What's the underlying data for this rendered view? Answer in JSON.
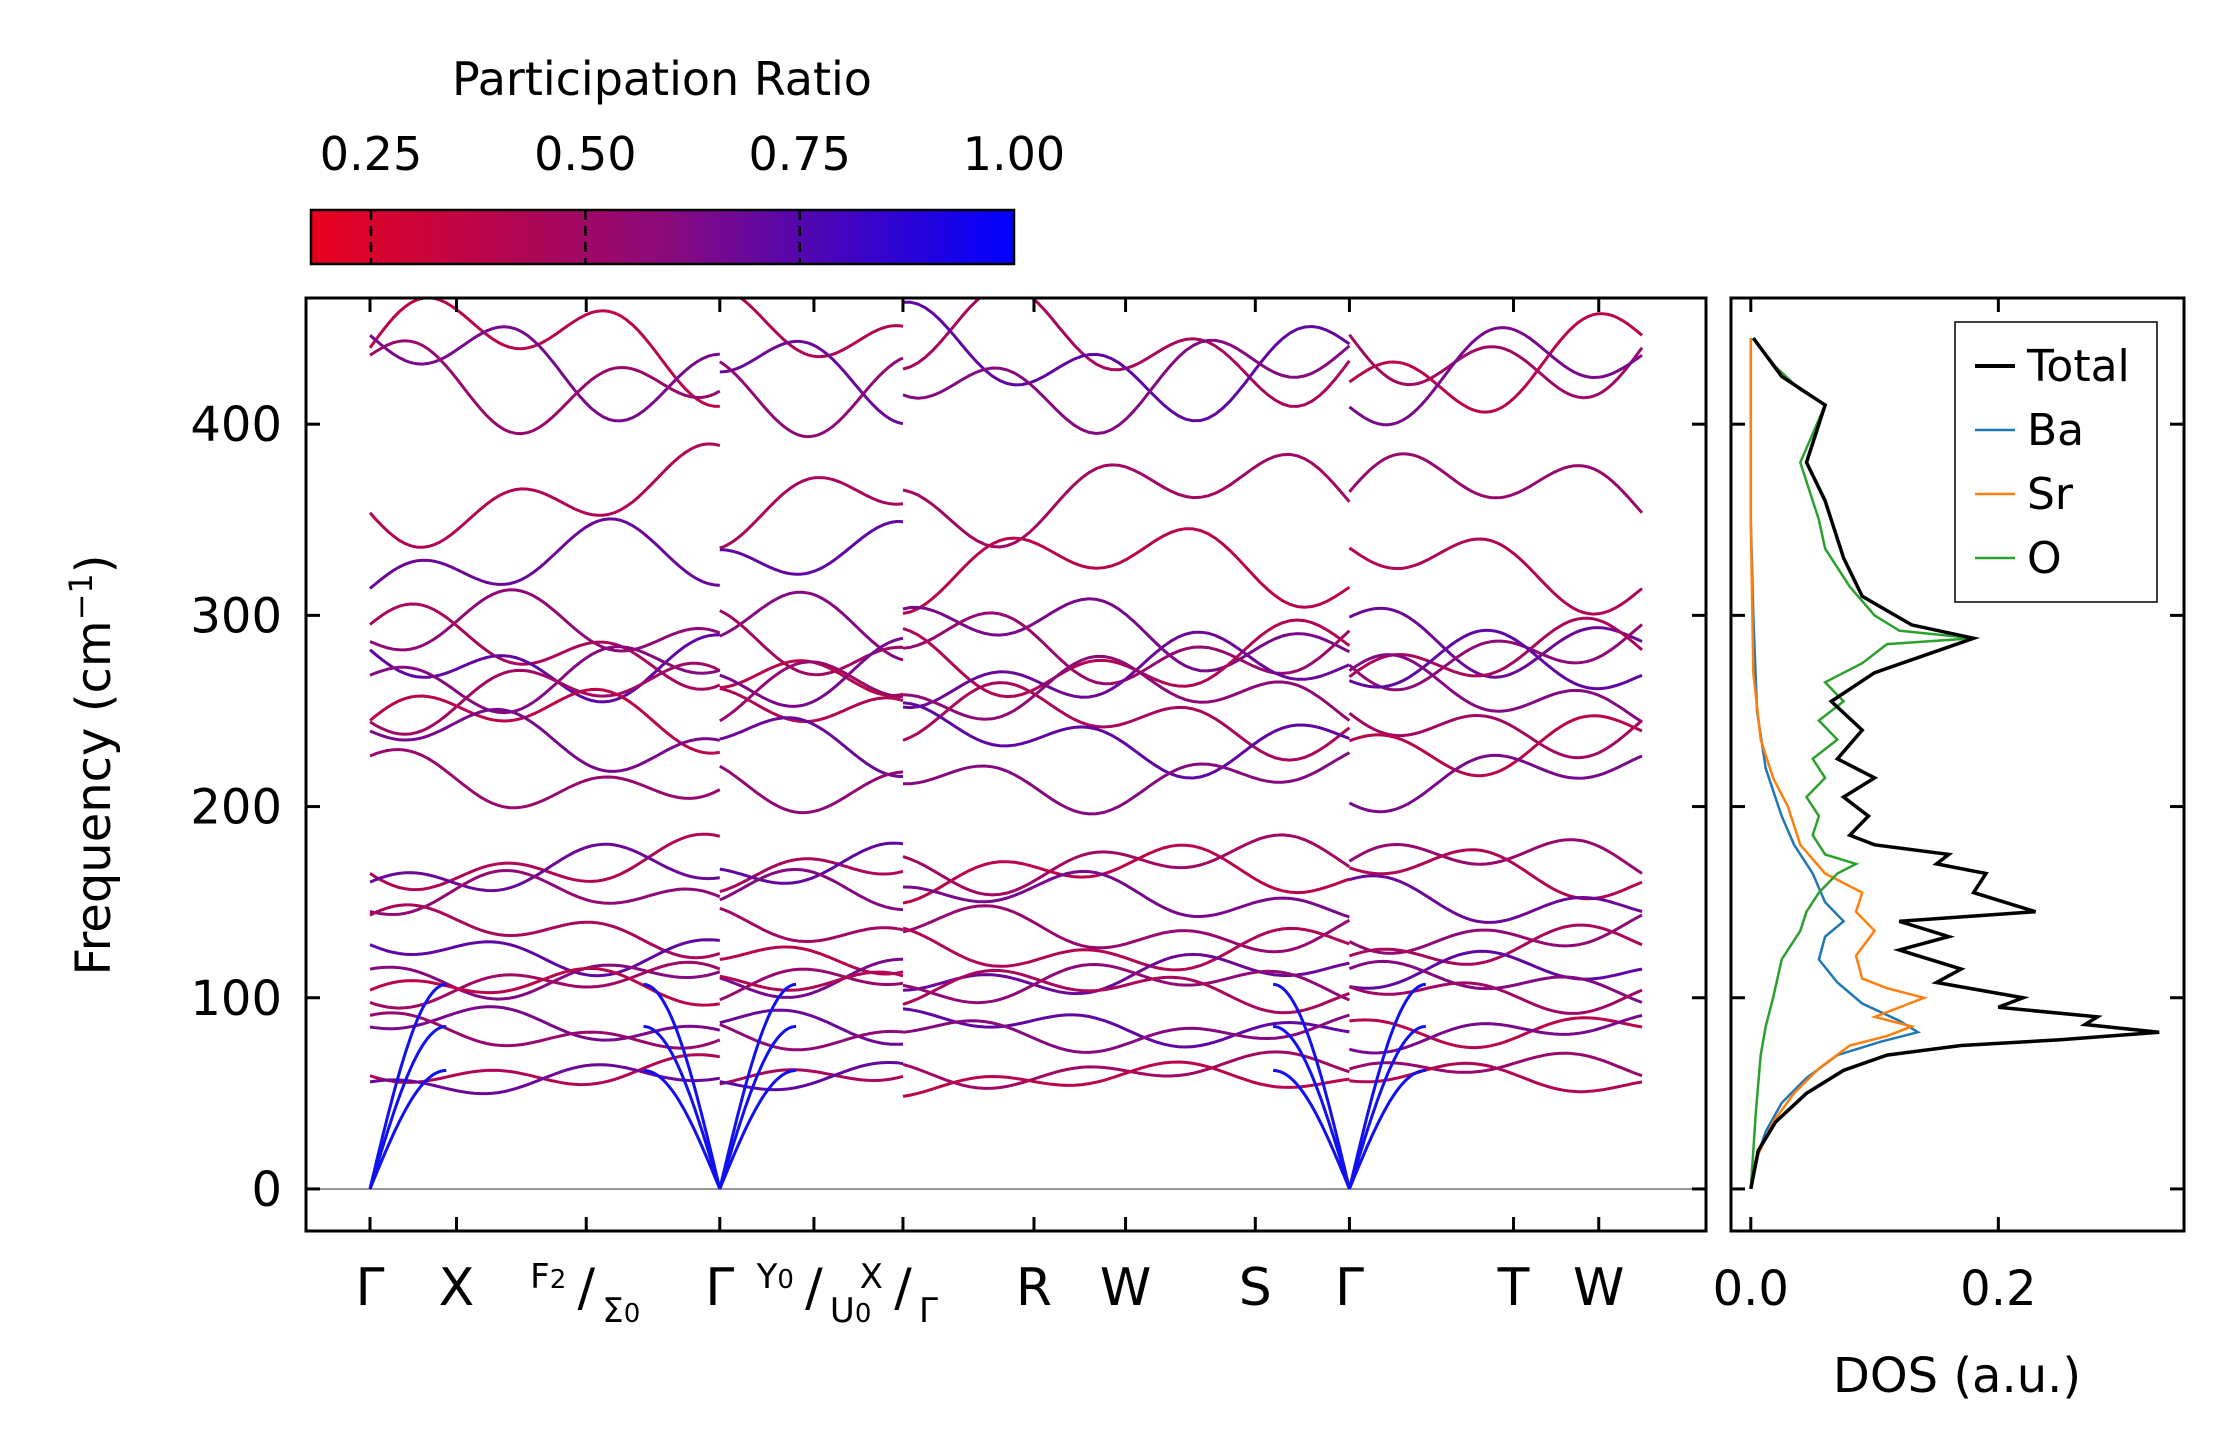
{
  "chart_data": [
    {
      "type": "line",
      "subtype": "phonon-band-structure",
      "ylabel_main": "Frequency (cm",
      "ylabel_sup": "−1",
      "ylabel_close": ")",
      "ylim": [
        -22,
        466
      ],
      "yticks": [
        0,
        100,
        200,
        300,
        400
      ],
      "xticks": [
        {
          "pos": 0.0,
          "label": "Γ"
        },
        {
          "pos": 0.068,
          "label": "X"
        },
        {
          "pos": 0.17,
          "label": ""
        },
        {
          "pos": 0.275,
          "label": "Γ"
        },
        {
          "pos": 0.349,
          "label": ""
        },
        {
          "pos": 0.419,
          "label": ""
        },
        {
          "pos": 0.522,
          "label": "R"
        },
        {
          "pos": 0.594,
          "label": "W"
        },
        {
          "pos": 0.696,
          "label": "S"
        },
        {
          "pos": 0.77,
          "label": "Γ"
        },
        {
          "pos": 0.899,
          "label": "T"
        },
        {
          "pos": 0.966,
          "label": "W"
        }
      ],
      "compound_labels": [
        {
          "num": "F",
          "num_sub": "2",
          "den": "Σ",
          "den_sub": "0"
        },
        {
          "num": "Y",
          "num_sub": "0",
          "den": "U",
          "den_sub": "0"
        },
        {
          "num": "X",
          "num_sub": "",
          "den": "Γ",
          "den_sub": ""
        }
      ],
      "segment_breaks": [
        0.275,
        0.419,
        0.77
      ],
      "band_approx_levels_cm1": [
        440,
        432,
        425,
        362,
        325,
        290,
        283,
        276,
        270,
        258,
        245,
        235,
        215,
        170,
        165,
        152,
        135,
        125,
        112,
        107,
        104,
        85,
        82,
        62,
        57
      ],
      "acoustic_modes_at_gamma": 3,
      "x_unit": "normalized path coordinate 0..1"
    },
    {
      "type": "colorbar",
      "title": "Participation Ratio",
      "range": [
        0.18,
        1.0
      ],
      "ticks": [
        {
          "value": 0.25,
          "label": "0.25"
        },
        {
          "value": 0.5,
          "label": "0.50"
        },
        {
          "value": 0.75,
          "label": "0.75"
        },
        {
          "value": 1.0,
          "label": "1.00"
        }
      ],
      "color_low": "#e8001c",
      "color_mid": "#8b0a7a",
      "color_high": "#0000ff"
    },
    {
      "type": "line",
      "subtype": "density-of-states",
      "xlabel": "DOS (a.u.)",
      "xlim": [
        -0.016,
        0.35
      ],
      "xticks": [
        {
          "value": 0.0,
          "label": "0.0"
        },
        {
          "value": 0.2,
          "label": "0.2"
        }
      ],
      "series": [
        {
          "name": "Total",
          "color": "#000000",
          "points": [
            [
              0,
              0
            ],
            [
              0.006,
              20
            ],
            [
              0.02,
              35
            ],
            [
              0.045,
              50
            ],
            [
              0.075,
              62
            ],
            [
              0.11,
              70
            ],
            [
              0.17,
              75
            ],
            [
              0.25,
              78
            ],
            [
              0.33,
              82
            ],
            [
              0.27,
              86
            ],
            [
              0.28,
              90
            ],
            [
              0.2,
              95
            ],
            [
              0.22,
              100
            ],
            [
              0.15,
              108
            ],
            [
              0.17,
              115
            ],
            [
              0.12,
              125
            ],
            [
              0.16,
              132
            ],
            [
              0.12,
              140
            ],
            [
              0.23,
              145
            ],
            [
              0.18,
              155
            ],
            [
              0.19,
              165
            ],
            [
              0.15,
              170
            ],
            [
              0.16,
              175
            ],
            [
              0.1,
              180
            ],
            [
              0.08,
              185
            ],
            [
              0.095,
              195
            ],
            [
              0.075,
              205
            ],
            [
              0.1,
              215
            ],
            [
              0.07,
              225
            ],
            [
              0.09,
              240
            ],
            [
              0.065,
              255
            ],
            [
              0.1,
              270
            ],
            [
              0.18,
              288
            ],
            [
              0.13,
              295
            ],
            [
              0.09,
              310
            ],
            [
              0.075,
              330
            ],
            [
              0.06,
              360
            ],
            [
              0.045,
              380
            ],
            [
              0.06,
              410
            ],
            [
              0.025,
              425
            ],
            [
              0.002,
              445
            ]
          ]
        },
        {
          "name": "Ba",
          "color": "#1f77b4",
          "points": [
            [
              0,
              0
            ],
            [
              0.004,
              15
            ],
            [
              0.012,
              30
            ],
            [
              0.025,
              45
            ],
            [
              0.045,
              58
            ],
            [
              0.07,
              70
            ],
            [
              0.105,
              77
            ],
            [
              0.135,
              82
            ],
            [
              0.12,
              88
            ],
            [
              0.09,
              97
            ],
            [
              0.07,
              108
            ],
            [
              0.055,
              120
            ],
            [
              0.06,
              132
            ],
            [
              0.075,
              140
            ],
            [
              0.06,
              150
            ],
            [
              0.05,
              165
            ],
            [
              0.035,
              180
            ],
            [
              0.025,
              195
            ],
            [
              0.012,
              220
            ],
            [
              0.005,
              250
            ],
            [
              0.002,
              300
            ],
            [
              0,
              350
            ],
            [
              0,
              445
            ]
          ]
        },
        {
          "name": "Sr",
          "color": "#ff7f0e",
          "points": [
            [
              0,
              0
            ],
            [
              0.006,
              18
            ],
            [
              0.018,
              35
            ],
            [
              0.035,
              50
            ],
            [
              0.055,
              63
            ],
            [
              0.08,
              75
            ],
            [
              0.11,
              80
            ],
            [
              0.13,
              85
            ],
            [
              0.1,
              90
            ],
            [
              0.14,
              100
            ],
            [
              0.11,
              105
            ],
            [
              0.09,
              110
            ],
            [
              0.085,
              122
            ],
            [
              0.1,
              135
            ],
            [
              0.085,
              145
            ],
            [
              0.09,
              155
            ],
            [
              0.06,
              165
            ],
            [
              0.04,
              180
            ],
            [
              0.03,
              200
            ],
            [
              0.018,
              215
            ],
            [
              0.008,
              235
            ],
            [
              0.002,
              270
            ],
            [
              0,
              350
            ],
            [
              0,
              445
            ]
          ]
        },
        {
          "name": "O",
          "color": "#2ca02c",
          "points": [
            [
              0,
              0
            ],
            [
              0.004,
              40
            ],
            [
              0.008,
              70
            ],
            [
              0.012,
              85
            ],
            [
              0.018,
              100
            ],
            [
              0.025,
              120
            ],
            [
              0.04,
              135
            ],
            [
              0.045,
              145
            ],
            [
              0.055,
              155
            ],
            [
              0.07,
              165
            ],
            [
              0.085,
              170
            ],
            [
              0.06,
              175
            ],
            [
              0.05,
              185
            ],
            [
              0.055,
              195
            ],
            [
              0.045,
              205
            ],
            [
              0.06,
              215
            ],
            [
              0.05,
              225
            ],
            [
              0.07,
              235
            ],
            [
              0.055,
              245
            ],
            [
              0.075,
              255
            ],
            [
              0.06,
              265
            ],
            [
              0.09,
              275
            ],
            [
              0.11,
              285
            ],
            [
              0.18,
              288
            ],
            [
              0.12,
              292
            ],
            [
              0.1,
              300
            ],
            [
              0.08,
              315
            ],
            [
              0.07,
              325
            ],
            [
              0.06,
              335
            ],
            [
              0.055,
              350
            ],
            [
              0.05,
              360
            ],
            [
              0.04,
              380
            ],
            [
              0.05,
              395
            ],
            [
              0.06,
              410
            ],
            [
              0.04,
              418
            ],
            [
              0.02,
              430
            ],
            [
              0.002,
              445
            ]
          ]
        }
      ]
    }
  ]
}
